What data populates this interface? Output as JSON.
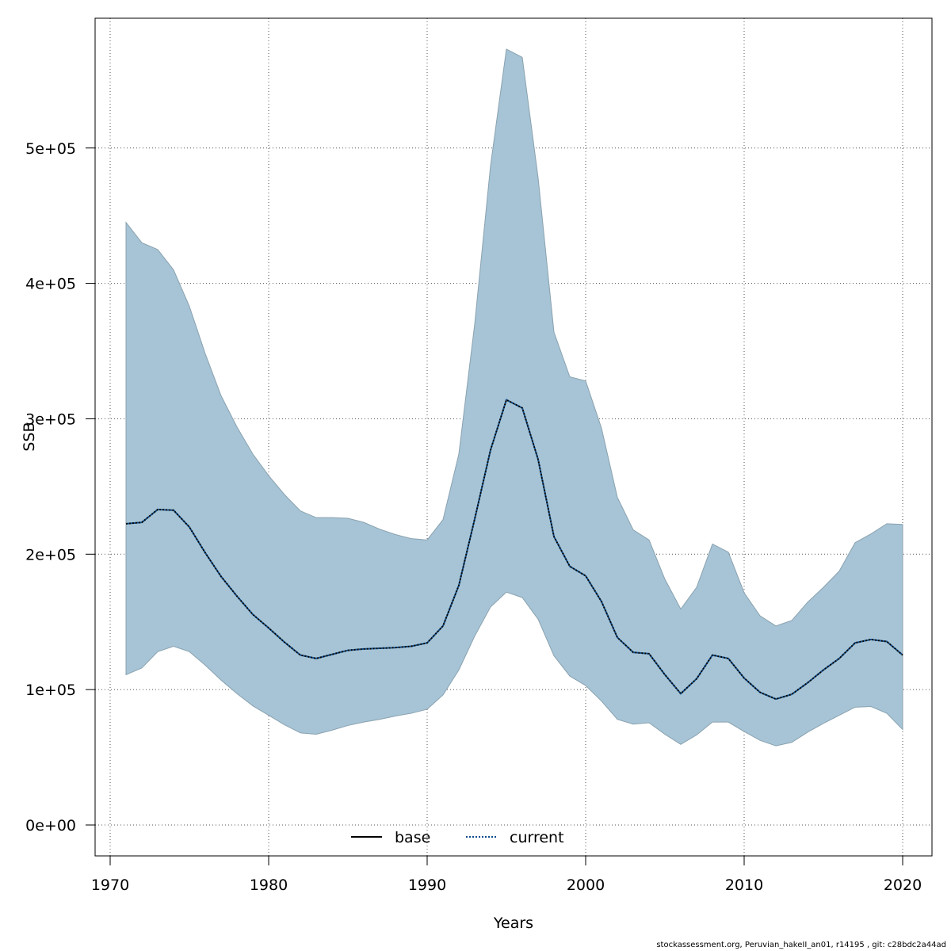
{
  "chart_data": {
    "type": "area",
    "xlabel": "Years",
    "ylabel": "SSB",
    "xlim": [
      1970,
      2020
    ],
    "ylim": [
      0,
      570000
    ],
    "x_ticks": [
      1970,
      1980,
      1990,
      2000,
      2010,
      2020
    ],
    "y_ticks": [
      0,
      100000,
      200000,
      300000,
      400000,
      500000
    ],
    "y_tick_labels": [
      "0e+00",
      "1e+05",
      "2e+05",
      "3e+05",
      "4e+05",
      "5e+05"
    ],
    "grid": true,
    "legend_position": "bottom-center",
    "colors": {
      "band": "#a6c4d5",
      "band_edge": "#8aa2b0",
      "current": "#0b4a8a",
      "base": "#000000"
    },
    "years": [
      1971,
      1972,
      1973,
      1974,
      1975,
      1976,
      1977,
      1978,
      1979,
      1980,
      1981,
      1982,
      1983,
      1984,
      1985,
      1986,
      1987,
      1988,
      1989,
      1990,
      1991,
      1992,
      1993,
      1994,
      1995,
      1996,
      1997,
      1998,
      1999,
      2000,
      2001,
      2002,
      2003,
      2004,
      2005,
      2006,
      2007,
      2008,
      2009,
      2010,
      2011,
      2012,
      2013,
      2014,
      2015,
      2016,
      2017,
      2018,
      2019,
      2020
    ],
    "band_upper": [
      445000,
      430000,
      425000,
      410000,
      383000,
      348000,
      317000,
      294000,
      274000,
      258000,
      244000,
      232000,
      227000,
      227000,
      226500,
      223500,
      218500,
      214500,
      211500,
      210500,
      225500,
      274000,
      370000,
      487000,
      573000,
      567000,
      478000,
      364000,
      331000,
      328000,
      293000,
      242000,
      218000,
      210500,
      181500,
      159500,
      175500,
      207500,
      201500,
      171500,
      154500,
      147000,
      151000,
      164500,
      175500,
      187500,
      208500,
      215000,
      222500,
      222000
    ],
    "band_lower": [
      111000,
      116000,
      128000,
      132000,
      128000,
      118000,
      107000,
      97000,
      88000,
      81000,
      74000,
      68000,
      67000,
      70000,
      73500,
      76000,
      78000,
      80500,
      82500,
      85500,
      96000,
      114500,
      139500,
      161000,
      172000,
      168000,
      152000,
      125000,
      110000,
      103000,
      91500,
      78000,
      74500,
      75500,
      67000,
      59500,
      66500,
      76000,
      76000,
      69000,
      62500,
      58500,
      61000,
      68500,
      75000,
      81000,
      87000,
      87500,
      82500,
      70500
    ],
    "series": [
      {
        "name": "base",
        "line_style": "solid",
        "values": []
      },
      {
        "name": "current",
        "line_style": "dotted",
        "values": [
          222500,
          223500,
          233000,
          232500,
          220000,
          201000,
          183500,
          169000,
          155500,
          145500,
          135000,
          125500,
          123000,
          126000,
          129000,
          130000,
          130500,
          131000,
          132000,
          134500,
          147000,
          177000,
          226000,
          277000,
          314000,
          308000,
          270000,
          213000,
          191000,
          184000,
          165000,
          138500,
          127500,
          126500,
          111000,
          97000,
          108000,
          125500,
          123000,
          108500,
          98000,
          93000,
          96500,
          105000,
          114500,
          123000,
          134500,
          137000,
          135500,
          125500
        ]
      }
    ]
  },
  "footer": "stockassessment.org, Peruvian_hakeII_an01, r14195 , git: c28bdc2a44ad"
}
